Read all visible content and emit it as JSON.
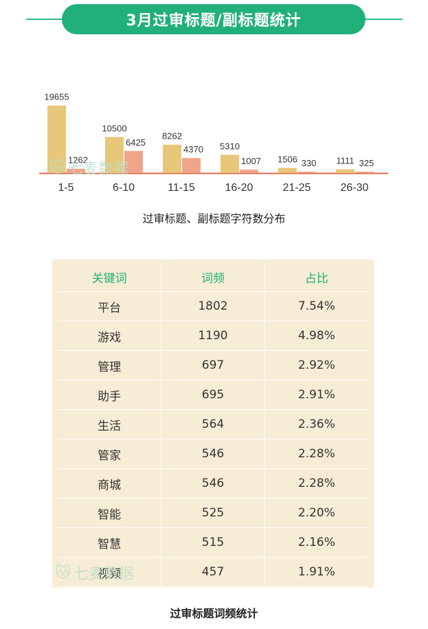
{
  "header": {
    "title": "3月过审标题/副标题统计"
  },
  "watermark": {
    "text": "七麦数据"
  },
  "chart_data": {
    "type": "bar",
    "title": "过审标题、副标题字符数分布",
    "categories": [
      "1-5",
      "6-10",
      "11-15",
      "16-20",
      "21-25",
      "26-30"
    ],
    "series": [
      {
        "values": [
          19655,
          10500,
          8262,
          5310,
          1506,
          1111
        ],
        "color": "#e8c77a"
      },
      {
        "values": [
          1262,
          6425,
          4370,
          1007,
          330,
          325
        ],
        "color": "#efa58a"
      }
    ],
    "baseline_color": "#e0664a",
    "ylim": [
      0,
      20000
    ]
  },
  "table": {
    "headers": [
      "关键词",
      "词频",
      "占比"
    ],
    "rows": [
      [
        "平台",
        "1802",
        "7.54%"
      ],
      [
        "游戏",
        "1190",
        "4.98%"
      ],
      [
        "管理",
        "697",
        "2.92%"
      ],
      [
        "助手",
        "695",
        "2.91%"
      ],
      [
        "生活",
        "564",
        "2.36%"
      ],
      [
        "管家",
        "546",
        "2.28%"
      ],
      [
        "商城",
        "546",
        "2.28%"
      ],
      [
        "智能",
        "525",
        "2.20%"
      ],
      [
        "智慧",
        "515",
        "2.16%"
      ],
      [
        "视频",
        "457",
        "1.91%"
      ]
    ],
    "caption": "过审标题词频统计"
  }
}
